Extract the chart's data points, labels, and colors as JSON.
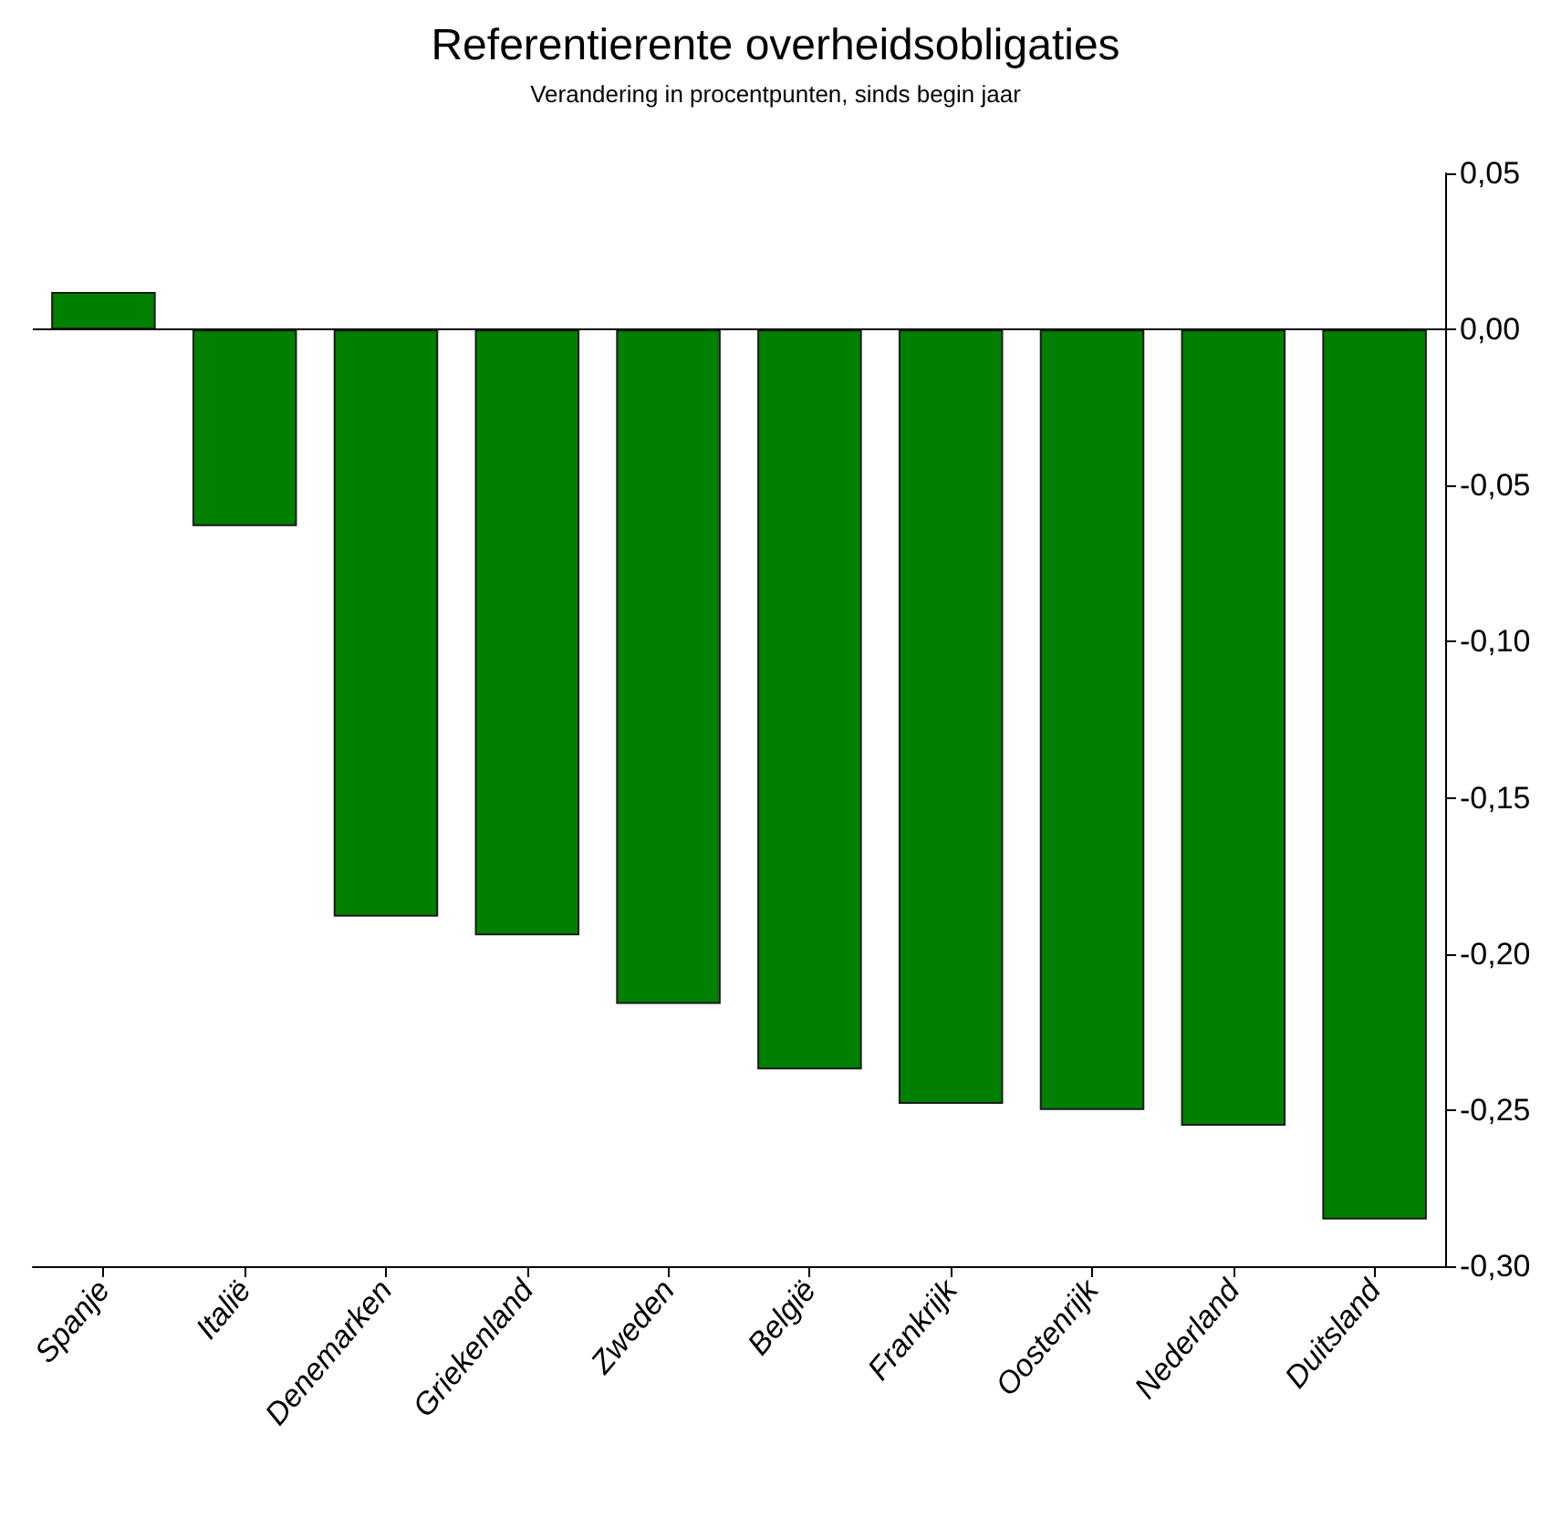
{
  "chart_data": {
    "type": "bar",
    "title": "Referentierente overheidsobligaties",
    "subtitle": "Verandering in procentpunten, sinds begin jaar",
    "categories": [
      "Spanje",
      "Italië",
      "Denemarken",
      "Griekenland",
      "Zweden",
      "België",
      "Frankrijk",
      "Oostenrijk",
      "Nederland",
      "Duitsland"
    ],
    "values": [
      0.012,
      -0.063,
      -0.188,
      -0.194,
      -0.216,
      -0.237,
      -0.248,
      -0.25,
      -0.255,
      -0.285
    ],
    "color": "#008000",
    "ylim": [
      -0.3,
      0.05
    ],
    "yticks": [
      {
        "value": 0.05,
        "label": "0,05"
      },
      {
        "value": 0,
        "label": "0,00"
      },
      {
        "value": -0.05,
        "label": "-0,05"
      },
      {
        "value": -0.1,
        "label": "-0,10"
      },
      {
        "value": -0.15,
        "label": "-0,15"
      },
      {
        "value": -0.2,
        "label": "-0,20"
      },
      {
        "value": -0.25,
        "label": "-0,25"
      },
      {
        "value": -0.3,
        "label": "-0,30"
      }
    ],
    "ref_lines": [
      {
        "axis": "y",
        "value": 0,
        "color": "#000000"
      }
    ]
  }
}
